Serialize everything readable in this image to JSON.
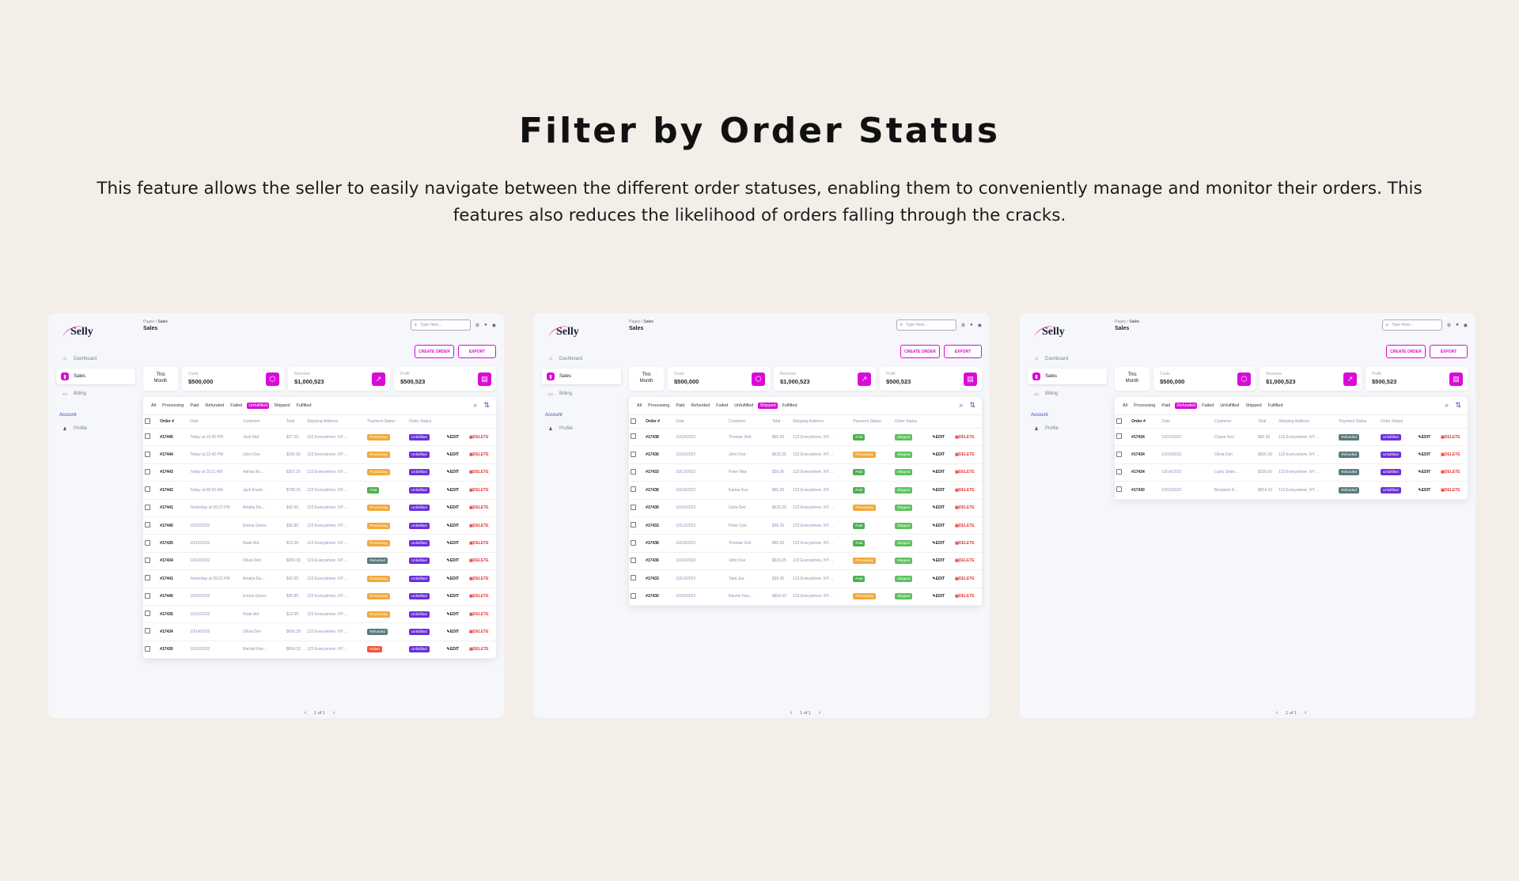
{
  "hero": {
    "title": "Filter by Order Status",
    "description": "This feature allows the seller to easily navigate between the different order statuses, enabling them to conveniently manage and monitor their orders. This features also reduces the likelihood of orders falling through the cracks."
  },
  "app": {
    "logo": "Selly",
    "nav": [
      {
        "label": "Dashboard",
        "icon": "home-icon"
      },
      {
        "label": "Sales",
        "icon": "chart-icon"
      },
      {
        "label": "Billing",
        "icon": "card-icon"
      }
    ],
    "account_label": "Account",
    "profile_label": "Profile",
    "breadcrumb_root": "Pages",
    "breadcrumb_sep": " / ",
    "breadcrumb_leaf": "Sales",
    "page_title": "Sales",
    "search_placeholder": "Type Here...",
    "create_order": "CREATE ORDER",
    "export": "EXPORT",
    "stat_month": "This Month",
    "stats": [
      {
        "label": "Costs",
        "value": "$500,000",
        "icon": "box-icon"
      },
      {
        "label": "Revenue",
        "value": "$1,000,523",
        "icon": "trend-icon"
      },
      {
        "label": "Profit",
        "value": "$500,523",
        "icon": "wallet-icon"
      }
    ],
    "filters": [
      "All",
      "Processing",
      "Paid",
      "Refunded",
      "Failed",
      "Unfulfilled",
      "Shipped",
      "Fulfilled"
    ],
    "columns": [
      "Order #",
      "Date",
      "Customer",
      "Total",
      "Shipping Address",
      "Payment Status",
      "Order Status"
    ],
    "edit_label": "EDIT",
    "delete_label": "DELETE",
    "pager": "1 of 1"
  },
  "panels": [
    {
      "active_filter": "Unfulfilled",
      "rows": [
        {
          "id": "#17445",
          "date": "Today at 12:45 PM",
          "customer": "Josh Mal",
          "total": "$37.25",
          "address": "123 Everywhere, NY ...",
          "payment": "Processing",
          "order": "Unfulfilled"
        },
        {
          "id": "#17444",
          "date": "Today at 12:42 PM",
          "customer": "John Doe",
          "total": "$292.50",
          "address": "123 Everywhere, NY ...",
          "payment": "Processing",
          "order": "Unfulfilled"
        },
        {
          "id": "#17443",
          "date": "Today at 10:11 AM",
          "customer": "Adrian Bo...",
          "total": "$357.25",
          "address": "123 Everywhere, NY ...",
          "payment": "Processing",
          "order": "Unfulfilled"
        },
        {
          "id": "#17442",
          "date": "Today at 08:30 AM",
          "customer": "Jack Krank...",
          "total": "$768.25",
          "address": "123 Everywhere, NY ...",
          "payment": "Paid",
          "order": "Unfulfilled"
        },
        {
          "id": "#17441",
          "date": "Yesterday at 09:22 PM",
          "customer": "Amelia Da...",
          "total": "$42.65",
          "address": "123 Everywhere, NY ...",
          "payment": "Processing",
          "order": "Unfulfilled"
        },
        {
          "id": "#17440",
          "date": "10/20/2022",
          "customer": "Emma Green",
          "total": "$35.85",
          "address": "123 Everywhere, NY ...",
          "payment": "Processing",
          "order": "Unfulfilled"
        },
        {
          "id": "#17435",
          "date": "10/15/2022",
          "customer": "Noah Ark",
          "total": "$12.95",
          "address": "123 Everywhere, NY ...",
          "payment": "Processing",
          "order": "Unfulfilled"
        },
        {
          "id": "#17434",
          "date": "10/14/2022",
          "customer": "Olivia Den",
          "total": "$656.39",
          "address": "123 Everywhere, NY ...",
          "payment": "Refunded",
          "order": "Unfulfilled"
        },
        {
          "id": "#17441",
          "date": "Yesterday at 09:22 PM",
          "customer": "Amelia Da...",
          "total": "$42.65",
          "address": "123 Everywhere, NY ...",
          "payment": "Processing",
          "order": "Unfulfilled"
        },
        {
          "id": "#17440",
          "date": "10/20/2022",
          "customer": "Emma Green",
          "total": "$35.85",
          "address": "123 Everywhere, NY ...",
          "payment": "Processing",
          "order": "Unfulfilled"
        },
        {
          "id": "#17435",
          "date": "10/15/2022",
          "customer": "Noah Ark",
          "total": "$12.95",
          "address": "123 Everywhere, NY ...",
          "payment": "Processing",
          "order": "Unfulfilled"
        },
        {
          "id": "#17434",
          "date": "10/14/2022",
          "customer": "Olivia Den",
          "total": "$656.39",
          "address": "123 Everywhere, NY ...",
          "payment": "Refunded",
          "order": "Unfulfilled"
        },
        {
          "id": "#17430",
          "date": "10/10/2022",
          "customer": "Rachel Han...",
          "total": "$854.33",
          "address": "123 Everywhere, NY ...",
          "payment": "Failed",
          "order": "Unfulfilled"
        }
      ]
    },
    {
      "active_filter": "Shipped",
      "rows": [
        {
          "id": "#17438",
          "date": "10/18/2022",
          "customer": "Thomas Doh",
          "total": "$66.25",
          "address": "123 Everywhere, NY ...",
          "payment": "Paid",
          "order": "Shipped"
        },
        {
          "id": "#17436",
          "date": "10/16/2022",
          "customer": "John Doe",
          "total": "$633.25",
          "address": "123 Everywhere, NY ...",
          "payment": "Processing",
          "order": "Shipped"
        },
        {
          "id": "#17433",
          "date": "10/13/2022",
          "customer": "Peter Wan",
          "total": "$39.26",
          "address": "123 Everywhere, NY ...",
          "payment": "Paid",
          "order": "Shipped"
        },
        {
          "id": "#17438",
          "date": "10/18/2022",
          "customer": "Karina Kus",
          "total": "$66.25",
          "address": "123 Everywhere, NY ...",
          "payment": "Paid",
          "order": "Shipped"
        },
        {
          "id": "#17436",
          "date": "10/16/2022",
          "customer": "Dalia Dee",
          "total": "$633.25",
          "address": "123 Everywhere, NY ...",
          "payment": "Processing",
          "order": "Shipped"
        },
        {
          "id": "#17433",
          "date": "10/13/2022",
          "customer": "Peter Can",
          "total": "$39.26",
          "address": "123 Everywhere, NY ...",
          "payment": "Paid",
          "order": "Shipped"
        },
        {
          "id": "#17438",
          "date": "10/18/2022",
          "customer": "Thomas Doh",
          "total": "$66.25",
          "address": "123 Everywhere, NY ...",
          "payment": "Paid",
          "order": "Shipped"
        },
        {
          "id": "#17436",
          "date": "10/16/2022",
          "customer": "John Doe",
          "total": "$633.25",
          "address": "123 Everywhere, NY ...",
          "payment": "Processing",
          "order": "Shipped"
        },
        {
          "id": "#17433",
          "date": "10/13/2022",
          "customer": "Talia Jax",
          "total": "$39.26",
          "address": "123 Everywhere, NY ...",
          "payment": "Paid",
          "order": "Shipped"
        },
        {
          "id": "#17430",
          "date": "10/10/2022",
          "customer": "Rachel Han...",
          "total": "$854.33",
          "address": "123 Everywhere, NY ...",
          "payment": "Processing",
          "order": "Shipped"
        }
      ]
    },
    {
      "active_filter": "Refunded",
      "rows": [
        {
          "id": "#17434",
          "date": "10/14/2022",
          "customer": "Chase Ken",
          "total": "$65.39",
          "address": "123 Everywhere, NY ...",
          "payment": "Refunded",
          "order": "Unfulfilled"
        },
        {
          "id": "#17434",
          "date": "10/14/2022",
          "customer": "Olivia Den",
          "total": "$656.39",
          "address": "123 Everywhere, NY ...",
          "payment": "Refunded",
          "order": "Unfulfilled"
        },
        {
          "id": "#17434",
          "date": "10/14/2022",
          "customer": "Layla Sebin...",
          "total": "$239.69",
          "address": "123 Everywhere, NY ...",
          "payment": "Refunded",
          "order": "Unfulfilled"
        },
        {
          "id": "#17430",
          "date": "10/10/2022",
          "customer": "Benjamin K...",
          "total": "$854.33",
          "address": "123 Everywhere, NY ...",
          "payment": "Refunded",
          "order": "Unfulfilled"
        }
      ]
    }
  ]
}
